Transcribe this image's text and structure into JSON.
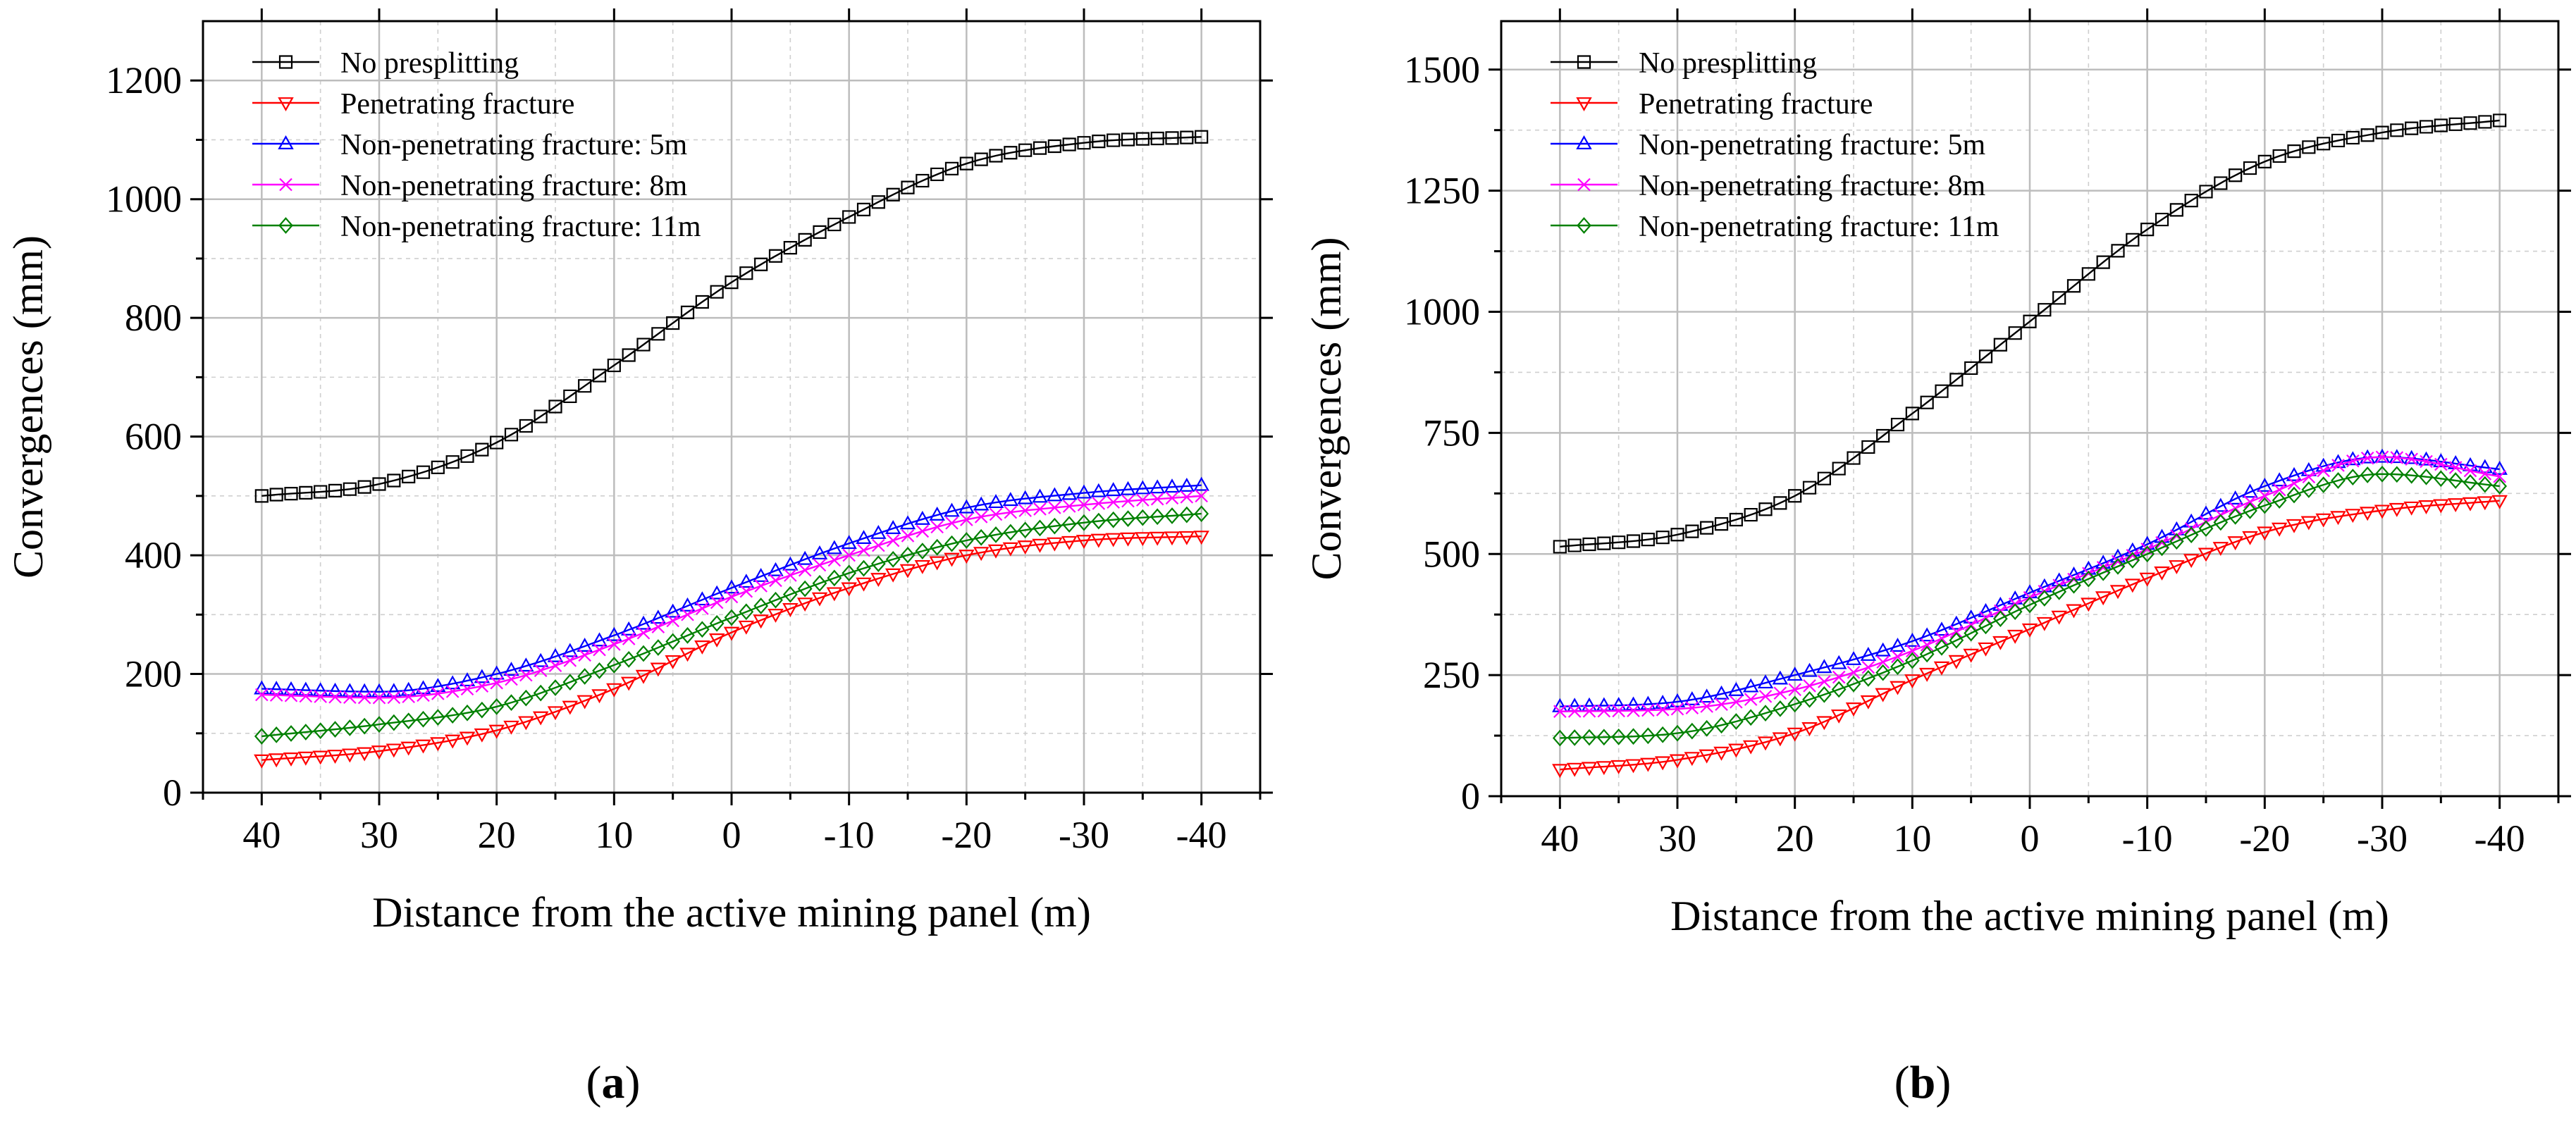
{
  "chart_data": [
    {
      "type": "line",
      "panel_label": "a",
      "xlabel": "Distance from the active mining panel (m)",
      "ylabel": "Convergences (mm)",
      "xlim": [
        45,
        -45
      ],
      "ylim": [
        0,
        1300
      ],
      "x_ticks": [
        40,
        30,
        20,
        10,
        0,
        -10,
        -20,
        -30,
        -40
      ],
      "x_tick_labels": [
        "40",
        "30",
        "20",
        "10",
        "0",
        "-10",
        "-20",
        "-30",
        "-40"
      ],
      "y_ticks": [
        0,
        200,
        400,
        600,
        800,
        1000,
        1200
      ],
      "y_tick_labels": [
        "0",
        "200",
        "400",
        "600",
        "800",
        "1000",
        "1200"
      ],
      "grid": true,
      "legend_position": "top-left",
      "x": [
        40,
        30,
        20,
        10,
        0,
        -10,
        -20,
        -30,
        -40
      ],
      "series": [
        {
          "name": "No presplitting",
          "color": "#000000",
          "marker": "square",
          "values": [
            500,
            520,
            590,
            720,
            860,
            970,
            1060,
            1095,
            1105
          ]
        },
        {
          "name": "Penetrating fracture",
          "color": "#ff0000",
          "marker": "triangle-down",
          "values": [
            55,
            70,
            105,
            175,
            270,
            345,
            400,
            425,
            432
          ]
        },
        {
          "name": "Non-penetrating fracture: 5m",
          "color": "#0000ff",
          "marker": "triangle-up",
          "values": [
            175,
            170,
            200,
            265,
            345,
            420,
            480,
            505,
            518
          ]
        },
        {
          "name": "Non-penetrating fracture: 8m",
          "color": "#ff00ff",
          "marker": "x",
          "values": [
            165,
            160,
            185,
            250,
            330,
            400,
            460,
            485,
            500
          ]
        },
        {
          "name": "Non-penetrating fracture: 11m",
          "color": "#008000",
          "marker": "diamond",
          "values": [
            95,
            115,
            145,
            215,
            295,
            370,
            425,
            455,
            470
          ]
        }
      ]
    },
    {
      "type": "line",
      "panel_label": "b",
      "xlabel": "Distance from the active mining panel (m)",
      "ylabel": "Convergences (mm)",
      "xlim": [
        45,
        -45
      ],
      "ylim": [
        0,
        1600
      ],
      "x_ticks": [
        40,
        30,
        20,
        10,
        0,
        -10,
        -20,
        -30,
        -40
      ],
      "x_tick_labels": [
        "40",
        "30",
        "20",
        "10",
        "0",
        "-10",
        "-20",
        "-30",
        "-40"
      ],
      "y_ticks": [
        0,
        250,
        500,
        750,
        1000,
        1250,
        1500
      ],
      "y_tick_labels": [
        "0",
        "250",
        "500",
        "750",
        "1000",
        "1250",
        "1500"
      ],
      "grid": true,
      "legend_position": "top-left",
      "x": [
        40,
        30,
        20,
        10,
        0,
        -10,
        -20,
        -30,
        -40
      ],
      "series": [
        {
          "name": "No presplitting",
          "color": "#000000",
          "marker": "square",
          "values": [
            515,
            540,
            620,
            790,
            980,
            1170,
            1310,
            1370,
            1395
          ]
        },
        {
          "name": "Penetrating fracture",
          "color": "#ff0000",
          "marker": "triangle-down",
          "values": [
            55,
            75,
            130,
            240,
            345,
            450,
            545,
            590,
            610
          ]
        },
        {
          "name": "Non-penetrating fracture: 5m",
          "color": "#0000ff",
          "marker": "triangle-up",
          "values": [
            185,
            195,
            250,
            320,
            420,
            520,
            640,
            700,
            675
          ]
        },
        {
          "name": "Non-penetrating fracture: 8m",
          "color": "#ff00ff",
          "marker": "x",
          "values": [
            175,
            180,
            220,
            300,
            410,
            510,
            620,
            700,
            660
          ]
        },
        {
          "name": "Non-penetrating fracture: 11m",
          "color": "#008000",
          "marker": "diamond",
          "values": [
            120,
            130,
            190,
            280,
            395,
            500,
            600,
            665,
            640
          ]
        }
      ]
    }
  ],
  "captions": [
    {
      "open": "(",
      "letter": "a",
      "close": ")"
    },
    {
      "open": "(",
      "letter": "b",
      "close": ")"
    }
  ]
}
